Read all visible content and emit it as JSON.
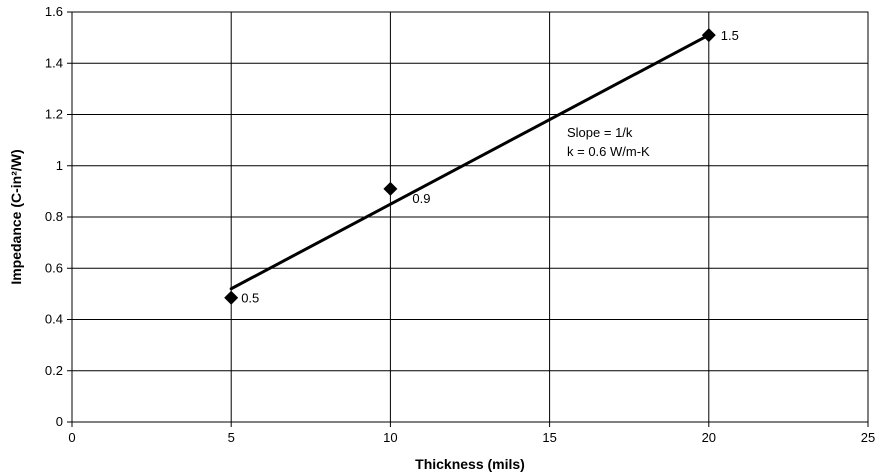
{
  "chart_data": {
    "type": "scatter",
    "title": "",
    "xlabel": "Thickness (mils)",
    "ylabel": "Impedance (C-in²/W)",
    "xlim": [
      0,
      25
    ],
    "ylim": [
      0,
      1.6
    ],
    "xticks": [
      0,
      5,
      10,
      15,
      20,
      25
    ],
    "yticks": [
      0,
      0.2,
      0.4,
      0.6,
      0.8,
      1,
      1.2,
      1.4,
      1.6
    ],
    "grid": true,
    "series": [
      {
        "type": "scatter",
        "marker": "diamond",
        "x": [
          5,
          10,
          20
        ],
        "y": [
          0.485,
          0.91,
          1.51
        ],
        "data_labels": [
          "0.5",
          "0.9",
          "1.5"
        ]
      },
      {
        "type": "line",
        "x": [
          5,
          20
        ],
        "y": [
          0.52,
          1.51
        ]
      }
    ],
    "annotations": [
      "Slope = 1/k",
      "k = 0.6 W/m-K"
    ]
  }
}
